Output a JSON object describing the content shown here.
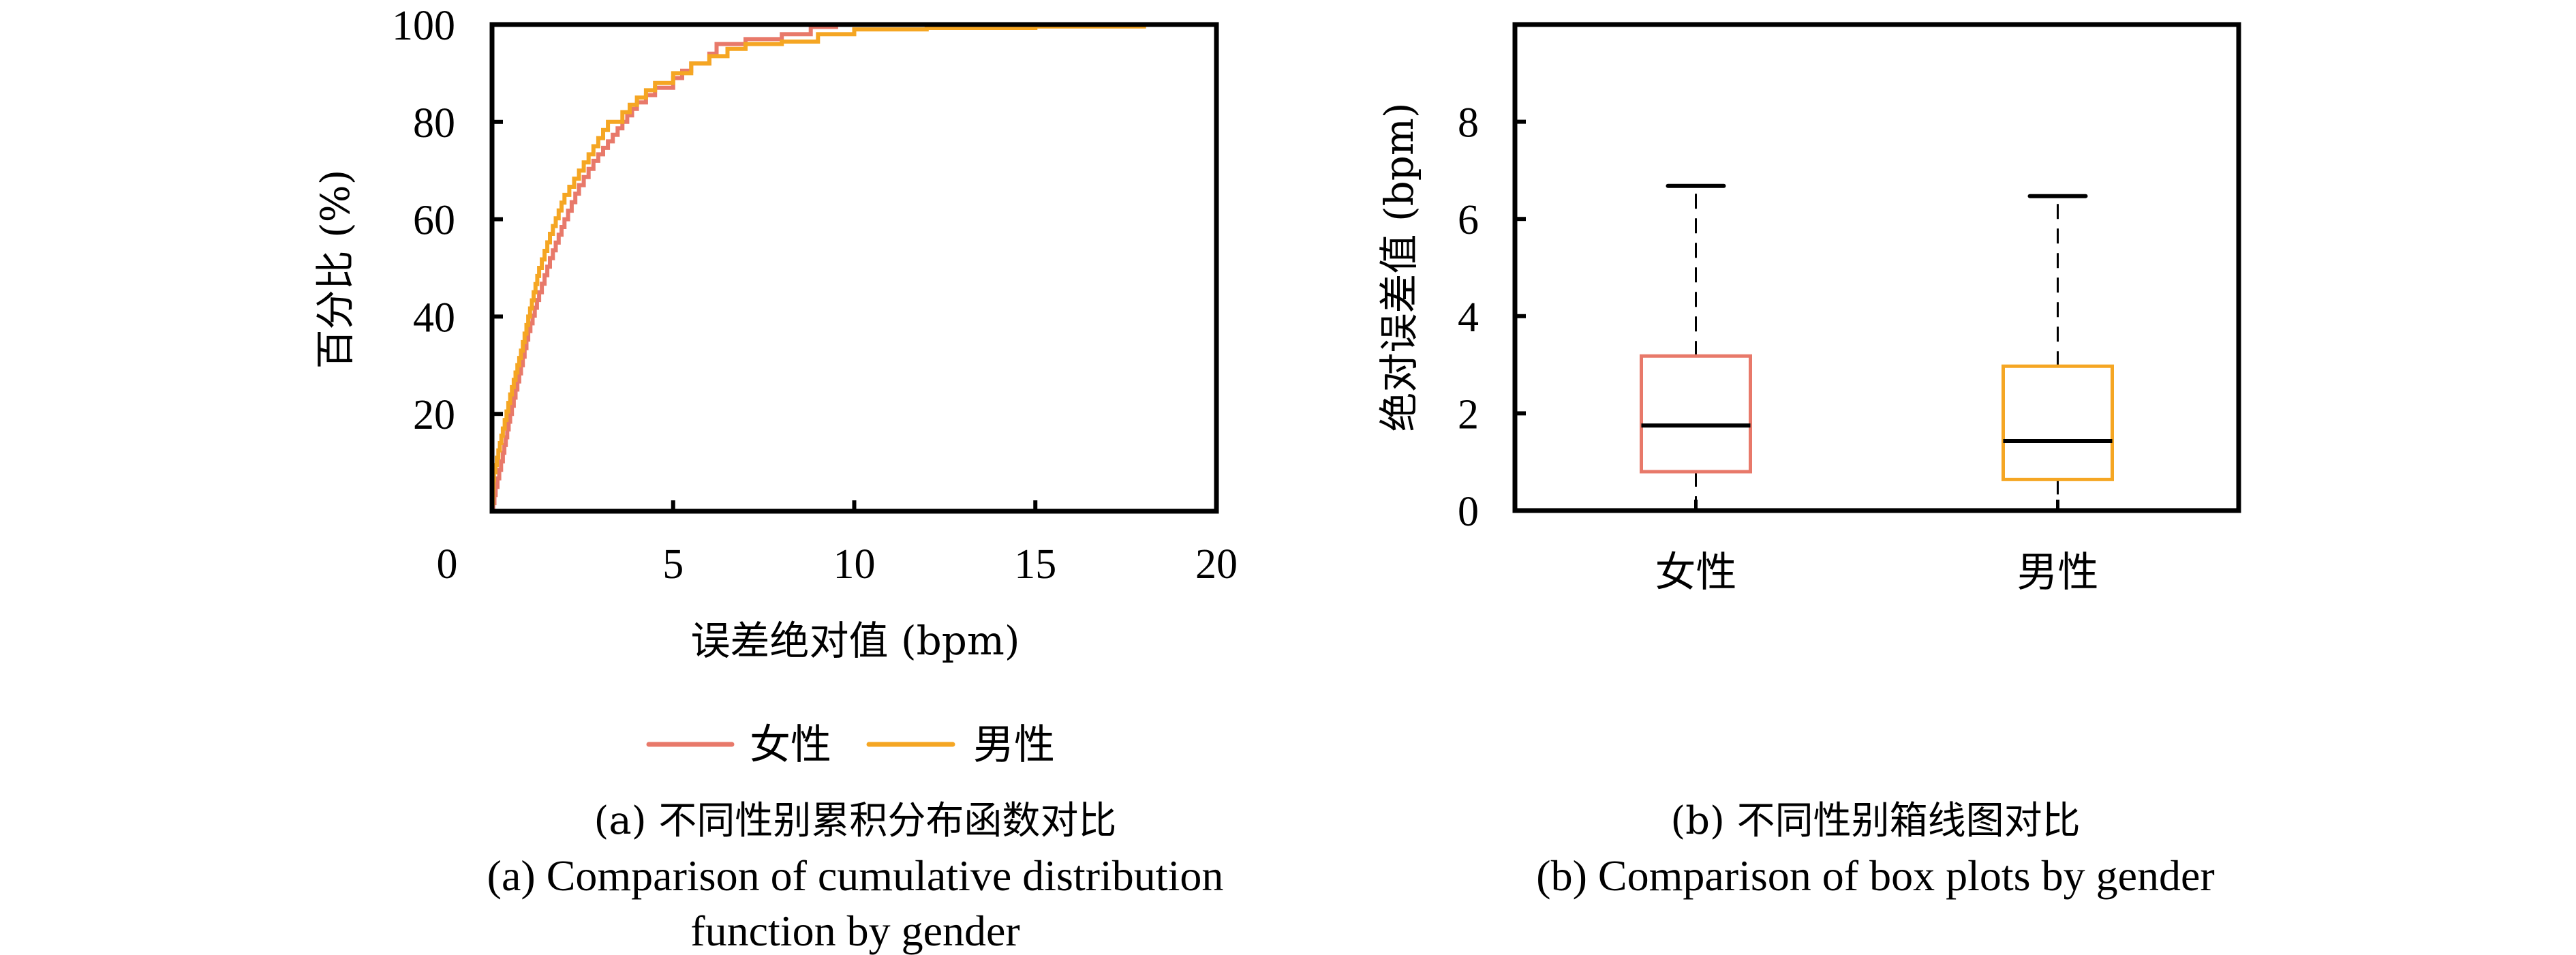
{
  "chart_data": [
    {
      "type": "line",
      "subtype": "step-cdf",
      "panel": "a",
      "xlabel": "误差绝对值 (bpm)",
      "ylabel": "百分比 (%)",
      "xlim": [
        0,
        20
      ],
      "ylim": [
        0,
        100
      ],
      "xticks": [
        "0",
        "5",
        "10",
        "15",
        "20"
      ],
      "xtick_values": [
        0,
        5,
        10,
        15,
        20
      ],
      "yticks": [
        "20",
        "40",
        "60",
        "80",
        "100"
      ],
      "ytick_values": [
        20,
        40,
        60,
        80,
        100
      ],
      "grid": false,
      "legend": {
        "placement": "bottom-center",
        "entries": [
          "女性",
          "男性"
        ]
      },
      "series": [
        {
          "name": "女性",
          "color": "#E8796A",
          "points": [
            [
              0,
              0
            ],
            [
              0.1,
              5
            ],
            [
              0.3,
              12
            ],
            [
              0.5,
              20
            ],
            [
              0.8,
              30
            ],
            [
              1.0,
              37
            ],
            [
              1.3,
              45
            ],
            [
              1.6,
              52
            ],
            [
              2.0,
              60
            ],
            [
              2.4,
              67
            ],
            [
              2.8,
              72
            ],
            [
              3.2,
              76
            ],
            [
              3.6,
              80
            ],
            [
              4.0,
              84
            ],
            [
              4.5,
              87
            ],
            [
              5.0,
              89
            ],
            [
              5.5,
              92
            ],
            [
              6.0,
              94
            ],
            [
              6.2,
              96
            ],
            [
              7.0,
              97
            ],
            [
              8.0,
              98
            ],
            [
              8.8,
              99.5
            ],
            [
              9.5,
              100
            ],
            [
              11.0,
              100
            ]
          ]
        },
        {
          "name": "男性",
          "color": "#F5A623",
          "points": [
            [
              0,
              0
            ],
            [
              0.05,
              8
            ],
            [
              0.3,
              17
            ],
            [
              0.5,
              24
            ],
            [
              0.8,
              33
            ],
            [
              1.0,
              40
            ],
            [
              1.3,
              50
            ],
            [
              1.6,
              57
            ],
            [
              2.0,
              65
            ],
            [
              2.4,
              70
            ],
            [
              2.8,
              75
            ],
            [
              3.2,
              80
            ],
            [
              3.6,
              82
            ],
            [
              4.0,
              85
            ],
            [
              4.5,
              88
            ],
            [
              5.0,
              90
            ],
            [
              5.5,
              92
            ],
            [
              6.0,
              93.5
            ],
            [
              6.5,
              95
            ],
            [
              7.0,
              96
            ],
            [
              8.0,
              96.5
            ],
            [
              9.0,
              98
            ],
            [
              10.0,
              99
            ],
            [
              12.0,
              99.3
            ],
            [
              15.0,
              99.6
            ],
            [
              18.0,
              100
            ]
          ]
        }
      ],
      "caption_zh": "(a) 不同性别累积分布函数对比",
      "caption_en_line1": "(a) Comparison of cumulative distribution",
      "caption_en_line2": "function by gender"
    },
    {
      "type": "box",
      "panel": "b",
      "xlabel": "",
      "ylabel": "绝对误差值 (bpm)",
      "ylim": [
        0,
        10
      ],
      "yticks": [
        "0",
        "2",
        "4",
        "6",
        "8"
      ],
      "ytick_values": [
        0,
        2,
        4,
        6,
        8
      ],
      "grid": false,
      "categories": [
        "女性",
        "男性"
      ],
      "boxes": [
        {
          "name": "女性",
          "color": "#E8796A",
          "whisker_low": 0,
          "q1": 0.8,
          "median": 1.75,
          "q3": 3.18,
          "whisker_high": 6.68
        },
        {
          "name": "男性",
          "color": "#F5A623",
          "whisker_low": 0,
          "q1": 0.64,
          "median": 1.43,
          "q3": 2.97,
          "whisker_high": 6.47
        }
      ],
      "caption_zh": "(b) 不同性别箱线图对比",
      "caption_en": "(b) Comparison of box plots by gender"
    }
  ]
}
